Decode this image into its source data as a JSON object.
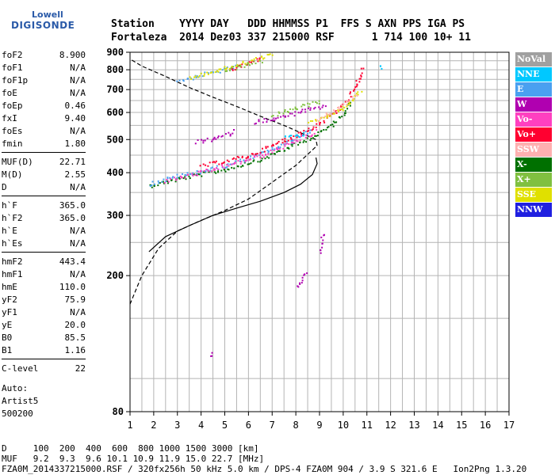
{
  "logo": {
    "line1": "Lowell",
    "line2": "DIGISONDE"
  },
  "header": {
    "line1": "Station    YYYY DAY   DDD HHMMSS P1  FFS S AXN PPS IGA PS",
    "line2": "Fortaleza  2014 Dez03 337 215000 RSF      1 714 100 10+ 11"
  },
  "params": {
    "group1": [
      {
        "label": "foF2",
        "value": "8.900"
      },
      {
        "label": "foF1",
        "value": "N/A"
      },
      {
        "label": "foF1p",
        "value": "N/A"
      },
      {
        "label": "foE",
        "value": "N/A"
      },
      {
        "label": "foEp",
        "value": "0.46"
      },
      {
        "label": "fxI",
        "value": "9.40"
      },
      {
        "label": "foEs",
        "value": "N/A"
      },
      {
        "label": "fmin",
        "value": "1.80"
      }
    ],
    "group2": [
      {
        "label": "MUF(D)",
        "value": "22.71"
      },
      {
        "label": "M(D)",
        "value": "2.55"
      },
      {
        "label": "D",
        "value": "N/A"
      }
    ],
    "group3": [
      {
        "label": "h`F",
        "value": "365.0"
      },
      {
        "label": "h`F2",
        "value": "365.0"
      },
      {
        "label": "h`E",
        "value": "N/A"
      },
      {
        "label": "h`Es",
        "value": "N/A"
      }
    ],
    "group4": [
      {
        "label": "hmF2",
        "value": "443.4"
      },
      {
        "label": "hmF1",
        "value": "N/A"
      },
      {
        "label": "hmE",
        "value": "110.0"
      },
      {
        "label": "yF2",
        "value": "75.9"
      },
      {
        "label": "yF1",
        "value": "N/A"
      },
      {
        "label": "yE",
        "value": "20.0"
      },
      {
        "label": "B0",
        "value": "85.5"
      },
      {
        "label": "B1",
        "value": "1.16"
      }
    ],
    "group5": [
      {
        "label": "C-level",
        "value": "22"
      }
    ]
  },
  "auto": {
    "line1": "Auto:",
    "line2": "Artist5",
    "line3": "500200"
  },
  "bottom": {
    "row_d": "D     100  200  400  600  800 1000 1500 3000 [km]",
    "row_muf": "MUF   9.2  9.3  9.6 10.1 10.9 11.9 15.0 22.7 [MHz]",
    "footer": "FZA0M_2014337215000.RSF / 320fx256h 50 kHz 5.0 km / DPS-4 FZA0M 904 / 3.9 S 321.6 E   Ion2Png 1.3.20"
  },
  "legend": [
    {
      "label": "NoVal",
      "color": "#a0a0a0"
    },
    {
      "label": "NNE",
      "color": "#00c8ff"
    },
    {
      "label": "E",
      "color": "#4aa0f0"
    },
    {
      "label": "W",
      "color": "#b000b0"
    },
    {
      "label": "Vo-",
      "color": "#ff40c0"
    },
    {
      "label": "Vo+",
      "color": "#ff0030"
    },
    {
      "label": "SSW",
      "color": "#ffb0b0"
    },
    {
      "label": "X-",
      "color": "#007000"
    },
    {
      "label": "X+",
      "color": "#80c040"
    },
    {
      "label": "SSE",
      "color": "#e0e000"
    },
    {
      "label": "NNW",
      "color": "#2020e0"
    }
  ],
  "chart_data": {
    "type": "scatter",
    "xlim": [
      1,
      17
    ],
    "ylim": [
      80,
      900
    ],
    "x_ticks": [
      "1",
      "2",
      "3",
      "4",
      "5",
      "6",
      "7",
      "8",
      "9",
      "10",
      "11",
      "12",
      "13",
      "14",
      "15",
      "16",
      "17"
    ],
    "y_ticks": [
      {
        "value": 80,
        "label": "80"
      },
      {
        "value": 200,
        "label": "200"
      },
      {
        "value": 300,
        "label": "300"
      },
      {
        "value": 400,
        "label": "400"
      },
      {
        "value": 500,
        "label": "500"
      },
      {
        "value": 600,
        "label": "600"
      },
      {
        "value": 700,
        "label": "700"
      },
      {
        "value": 800,
        "label": "800"
      },
      {
        "value": 900,
        "label": "900"
      }
    ],
    "y_scale": "log",
    "grid": true,
    "legend_position": "right",
    "series": [
      {
        "name": "X-",
        "color": "#007000",
        "traces": [
          [
            [
              1.8,
              368
            ],
            [
              3,
              385
            ],
            [
              5,
              410
            ],
            [
              6.5,
              440
            ],
            [
              7.8,
              480
            ],
            [
              8.8,
              515
            ],
            [
              9.5,
              555
            ],
            [
              10,
              600
            ],
            [
              10.3,
              650
            ]
          ]
        ]
      },
      {
        "name": "E",
        "color": "#4aa0f0",
        "traces": [
          [
            [
              1.8,
              372
            ],
            [
              3,
              392
            ],
            [
              5,
              420
            ],
            [
              6.5,
              455
            ],
            [
              7.8,
              495
            ],
            [
              8.6,
              535
            ]
          ],
          [
            [
              3,
              745
            ],
            [
              4.5,
              790
            ],
            [
              5.5,
              820
            ]
          ]
        ]
      },
      {
        "name": "Vo+",
        "color": "#ff0030",
        "traces": [
          [
            [
              4,
              420
            ],
            [
              6,
              450
            ],
            [
              7.5,
              500
            ],
            [
              8.7,
              545
            ],
            [
              9.6,
              600
            ],
            [
              10.2,
              660
            ],
            [
              10.5,
              720
            ],
            [
              10.8,
              810
            ]
          ],
          [
            [
              5.2,
              800
            ],
            [
              6,
              840
            ],
            [
              6.5,
              870
            ]
          ]
        ]
      },
      {
        "name": "Vo-",
        "color": "#ff40c0",
        "traces": [
          [
            [
              2.5,
              380
            ],
            [
              4.5,
              410
            ],
            [
              6.5,
              450
            ],
            [
              7.8,
              490
            ],
            [
              8.8,
              530
            ]
          ]
        ]
      },
      {
        "name": "SSE",
        "color": "#e0e000",
        "traces": [
          [
            [
              8.5,
              560
            ],
            [
              9.3,
              590
            ],
            [
              10,
              620
            ],
            [
              10.4,
              660
            ],
            [
              10.7,
              700
            ]
          ],
          [
            [
              3.5,
              760
            ],
            [
              5,
              810
            ],
            [
              6.5,
              870
            ],
            [
              7,
              890
            ]
          ]
        ]
      },
      {
        "name": "SSW",
        "color": "#ffb0b0",
        "traces": [
          [
            [
              8.8,
              570
            ],
            [
              9.8,
              620
            ],
            [
              10.5,
              680
            ]
          ]
        ]
      },
      {
        "name": "NNE",
        "color": "#00c8ff",
        "traces": [
          [
            [
              7.5,
              510
            ],
            [
              8.3,
              520
            ]
          ],
          [
            [
              11.6,
              815
            ],
            [
              11.6,
              815
            ]
          ]
        ]
      },
      {
        "name": "X+",
        "color": "#80c040",
        "traces": [
          [
            [
              7,
              590
            ],
            [
              8,
              620
            ],
            [
              9,
              650
            ]
          ],
          [
            [
              5,
              800
            ],
            [
              6.5,
              850
            ]
          ]
        ]
      },
      {
        "name": "W",
        "color": "#b000b0",
        "traces": [
          [
            [
              3.8,
              493
            ],
            [
              4.6,
              505
            ],
            [
              5.4,
              530
            ]
          ],
          [
            [
              6.2,
              565
            ],
            [
              7.5,
              585
            ],
            [
              8.3,
              610
            ],
            [
              9.2,
              625
            ]
          ],
          [
            [
              8,
              185
            ],
            [
              8.4,
              205
            ]
          ],
          [
            [
              9,
              235
            ],
            [
              9.1,
              265
            ]
          ],
          [
            [
              4.4,
              118
            ],
            [
              4.4,
              118
            ]
          ]
        ]
      }
    ],
    "curves": [
      {
        "style": "solid",
        "points": [
          [
            1.8,
            235
          ],
          [
            2.5,
            260
          ],
          [
            3.5,
            280
          ],
          [
            4.5,
            300
          ],
          [
            5.5,
            315
          ],
          [
            6.5,
            330
          ],
          [
            7.5,
            350
          ],
          [
            8.2,
            370
          ],
          [
            8.7,
            395
          ],
          [
            8.9,
            425
          ],
          [
            8.85,
            443
          ]
        ]
      },
      {
        "style": "dashed",
        "points": [
          [
            1,
            165
          ],
          [
            1.5,
            200
          ],
          [
            2.2,
            240
          ],
          [
            3,
            270
          ],
          [
            4,
            290
          ],
          [
            5,
            310
          ],
          [
            6,
            335
          ],
          [
            7,
            375
          ],
          [
            8,
            420
          ],
          [
            8.9,
            480
          ],
          [
            8.85,
            500
          ],
          [
            8.3,
            520
          ],
          [
            7.5,
            550
          ],
          [
            6.5,
            585
          ],
          [
            5.5,
            625
          ],
          [
            4.5,
            665
          ],
          [
            3.5,
            710
          ],
          [
            2.5,
            765
          ],
          [
            1.5,
            820
          ],
          [
            1,
            860
          ]
        ]
      }
    ]
  }
}
